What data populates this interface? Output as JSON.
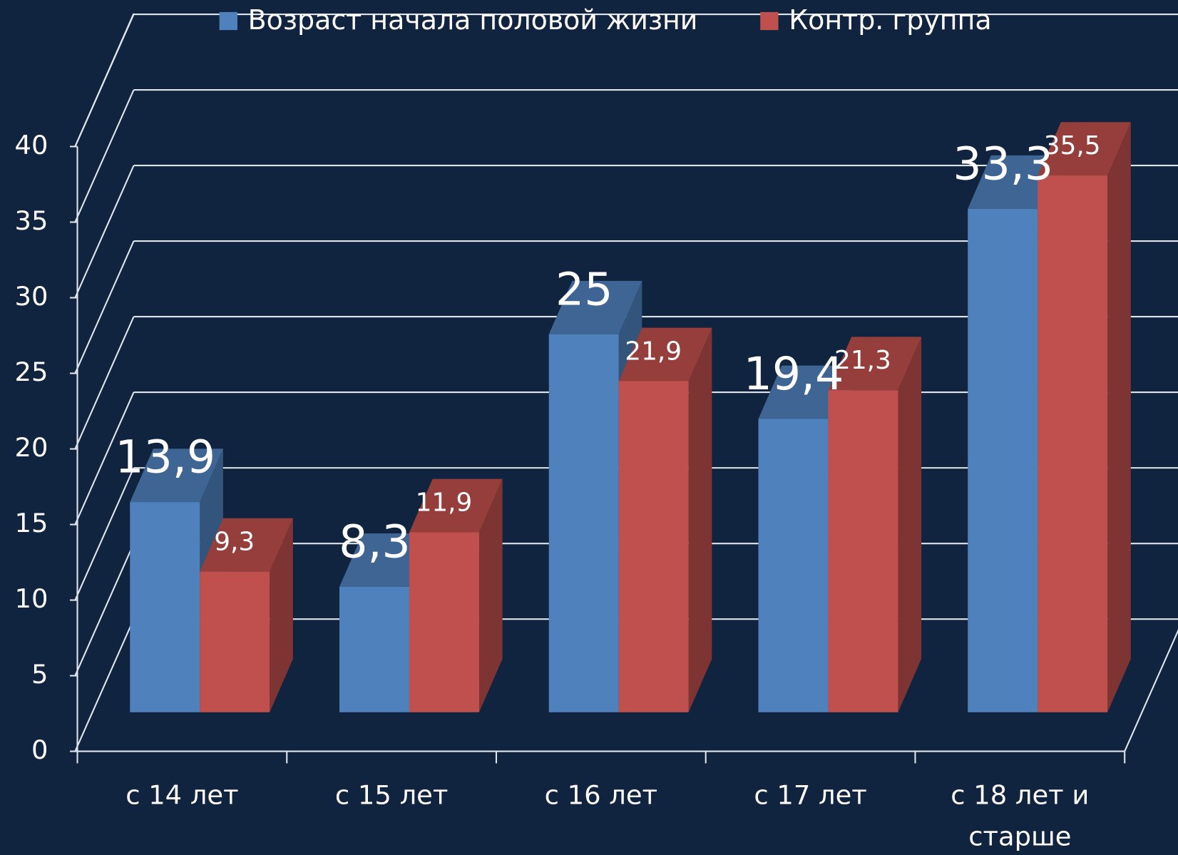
{
  "chart_data": {
    "type": "bar3d",
    "categories": [
      "с 14 лет",
      "с 15 лет",
      "с 16 лет",
      "с 17 лет",
      "с 18 лет и старше"
    ],
    "series": [
      {
        "name": "Возраст начала половой жизни",
        "color": "#4f81bd",
        "values": [
          13.9,
          8.3,
          25,
          19.4,
          33.3
        ],
        "value_labels": [
          "13,9",
          "8,3",
          "25",
          "19,4",
          "33,3"
        ]
      },
      {
        "name": "Контр. группа",
        "color": "#c0504d",
        "values": [
          9.3,
          11.9,
          21.9,
          21.3,
          35.5
        ],
        "value_labels": [
          "9,3",
          "11,9",
          "21,9",
          "21,3",
          "35,5"
        ]
      }
    ],
    "ylim": [
      0,
      40
    ],
    "yticks": [
      0,
      5,
      10,
      15,
      20,
      25,
      30,
      35,
      40
    ],
    "grid": true,
    "legend": "top"
  }
}
